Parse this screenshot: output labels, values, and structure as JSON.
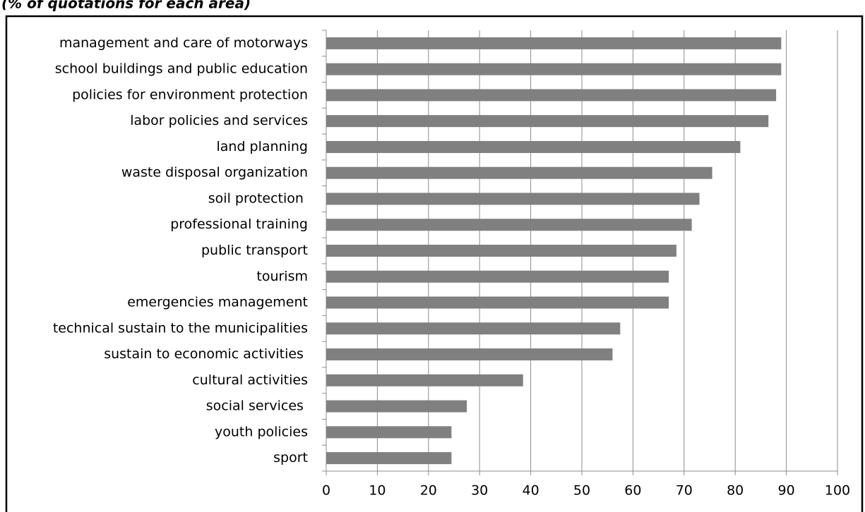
{
  "chart_data": {
    "type": "bar",
    "orientation": "horizontal",
    "subtitle": "(% of quotations for each area)",
    "categories": [
      "management and care of motorways",
      "school buildings and public education",
      "policies for environment protection",
      "labor policies and services",
      "land planning",
      "waste disposal organization",
      "soil protection ",
      "professional training",
      "public transport",
      "tourism",
      "emergencies management",
      "technical sustain to the municipalities",
      "sustain to economic activities ",
      "cultural activities",
      "social services ",
      "youth policies",
      "sport"
    ],
    "values": [
      89,
      89,
      88,
      86.5,
      81,
      75.5,
      73,
      71.5,
      68.5,
      67,
      67,
      57.5,
      56,
      38.5,
      27.5,
      24.5,
      24.5
    ],
    "color": "#808080",
    "xlim": [
      0,
      100
    ],
    "xticks": [
      0,
      10,
      20,
      30,
      40,
      50,
      60,
      70,
      80,
      90,
      100
    ],
    "grid": true
  }
}
